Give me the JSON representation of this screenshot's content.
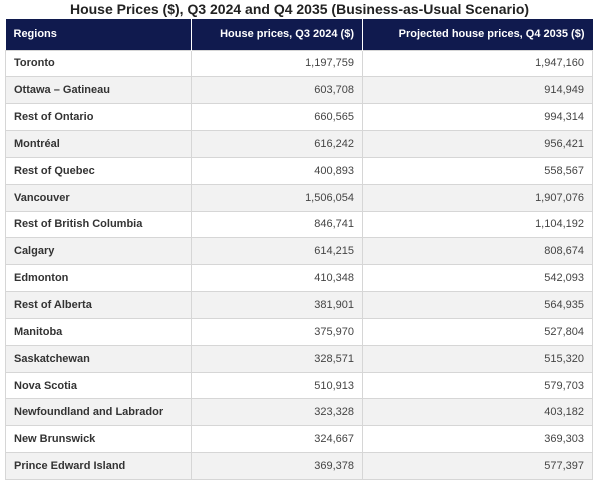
{
  "title": "House Prices ($), Q3 2024 and Q4 2035 (Business-as-Usual Scenario)",
  "columns": [
    "Regions",
    "House prices, Q3 2024 ($)",
    "Projected house prices, Q4 2035 ($)"
  ],
  "rows": [
    {
      "region": "Toronto",
      "q3_2024": "1,197,759",
      "q4_2035": "1,947,160"
    },
    {
      "region": "Ottawa – Gatineau",
      "q3_2024": "603,708",
      "q4_2035": "914,949"
    },
    {
      "region": "Rest of Ontario",
      "q3_2024": "660,565",
      "q4_2035": "994,314"
    },
    {
      "region": "Montréal",
      "q3_2024": "616,242",
      "q4_2035": "956,421"
    },
    {
      "region": "Rest of Quebec",
      "q3_2024": "400,893",
      "q4_2035": "558,567"
    },
    {
      "region": "Vancouver",
      "q3_2024": "1,506,054",
      "q4_2035": "1,907,076"
    },
    {
      "region": "Rest of British Columbia",
      "q3_2024": "846,741",
      "q4_2035": "1,104,192"
    },
    {
      "region": "Calgary",
      "q3_2024": "614,215",
      "q4_2035": "808,674"
    },
    {
      "region": "Edmonton",
      "q3_2024": "410,348",
      "q4_2035": "542,093"
    },
    {
      "region": "Rest of Alberta",
      "q3_2024": "381,901",
      "q4_2035": "564,935"
    },
    {
      "region": "Manitoba",
      "q3_2024": "375,970",
      "q4_2035": "527,804"
    },
    {
      "region": "Saskatchewan",
      "q3_2024": "328,571",
      "q4_2035": "515,320"
    },
    {
      "region": "Nova Scotia",
      "q3_2024": "510,913",
      "q4_2035": "579,703"
    },
    {
      "region": "Newfoundland and Labrador",
      "q3_2024": "323,328",
      "q4_2035": "403,182"
    },
    {
      "region": "New Brunswick",
      "q3_2024": "324,667",
      "q4_2035": "369,303"
    },
    {
      "region": "Prince Edward Island",
      "q3_2024": "369,378",
      "q4_2035": "577,397"
    }
  ],
  "colors": {
    "header_bg": "#101a4e",
    "header_text": "#ffffff",
    "row_alt": "#f2f2f2",
    "border": "#d6d6d6"
  }
}
